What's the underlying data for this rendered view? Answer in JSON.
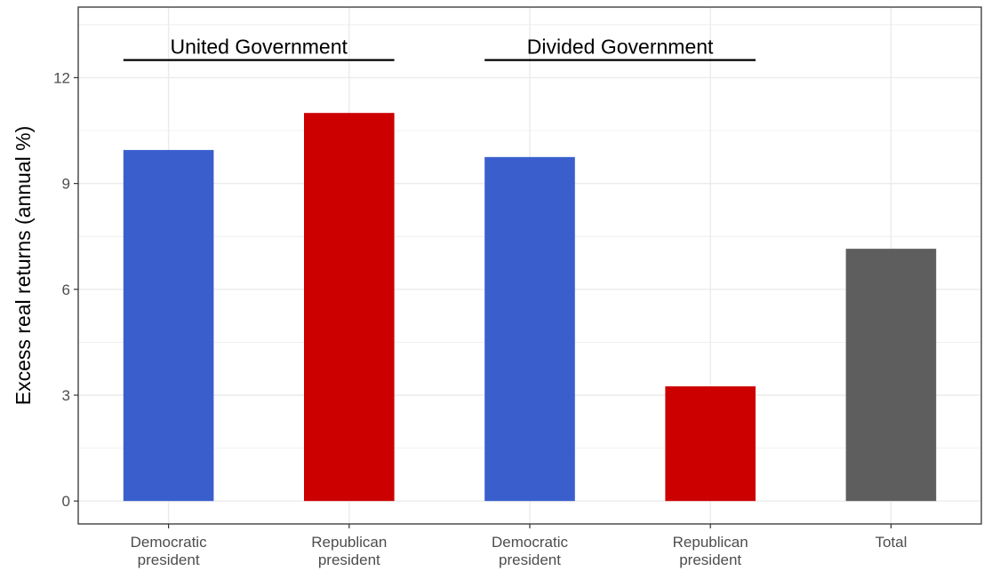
{
  "chart_data": {
    "type": "bar",
    "categories": [
      [
        "Democratic",
        "president"
      ],
      [
        "Republican",
        "president"
      ],
      [
        "Democratic",
        "president"
      ],
      [
        "Republican",
        "president"
      ],
      [
        "Total"
      ]
    ],
    "values": [
      9.95,
      11.0,
      9.75,
      3.25,
      7.15
    ],
    "bar_colors": [
      "#3a5fcd",
      "#cd0000",
      "#3a5fcd",
      "#cd0000",
      "#5e5e5e"
    ],
    "ylabel": "Excess real returns (annual %)",
    "xlabel": "",
    "ylim": [
      -0.65,
      14.0
    ],
    "yticks": [
      0,
      3,
      6,
      9,
      12
    ],
    "grid": true,
    "group_labels": [
      {
        "text": "United Government",
        "first": 0,
        "last": 1
      },
      {
        "text": "Divided Government",
        "first": 2,
        "last": 3
      }
    ],
    "group_label_value": 12.5
  },
  "colors": {
    "grid": "#ebebeb",
    "panel_border": "#333333",
    "tick_text": "#4d4d4d"
  }
}
